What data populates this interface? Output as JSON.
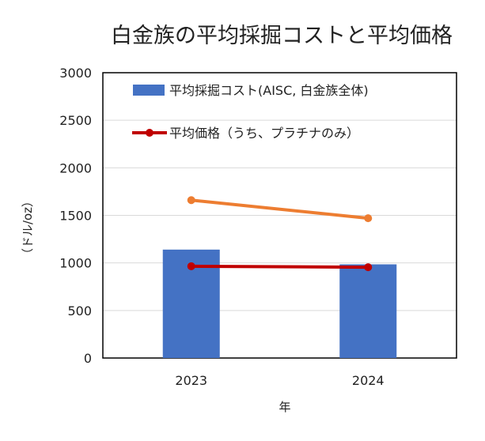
{
  "chart_data": {
    "type": "bar",
    "title": "白金族の平均採掘コストと平均価格",
    "xlabel": "年",
    "ylabel": "（ドル/oz）",
    "categories": [
      "2023",
      "2024"
    ],
    "ylim": [
      0,
      3000
    ],
    "yticks": [
      0,
      500,
      1000,
      1500,
      2000,
      2500,
      3000
    ],
    "grid": true,
    "legend_position": "top",
    "series": [
      {
        "name": "平均採掘コスト(AISC, 白金族全体)",
        "kind": "bar",
        "color": "#4472C4",
        "values": [
          1140,
          985
        ]
      },
      {
        "name": "平均価格（うち、プラチナのみ）",
        "kind": "line",
        "color": "#C00000",
        "values": [
          965,
          955
        ]
      },
      {
        "kind": "line",
        "color": "#ED7D31",
        "values": [
          1660,
          1470
        ]
      }
    ]
  }
}
